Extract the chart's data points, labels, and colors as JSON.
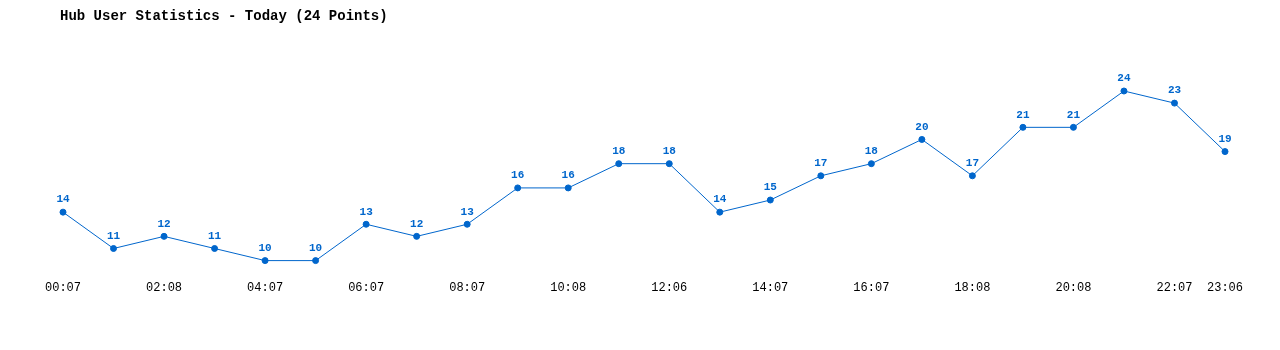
{
  "chart_data": {
    "type": "line",
    "title": "Hub User Statistics - Today (24 Points)",
    "categories": [
      "00:07",
      null,
      "02:08",
      null,
      "04:07",
      null,
      "06:07",
      null,
      "08:07",
      null,
      "10:08",
      null,
      "12:06",
      null,
      "14:07",
      null,
      "16:07",
      null,
      "18:08",
      null,
      "20:08",
      null,
      "22:07",
      "23:06"
    ],
    "values": [
      14,
      11,
      12,
      11,
      10,
      10,
      13,
      12,
      13,
      16,
      16,
      18,
      18,
      14,
      15,
      17,
      18,
      20,
      17,
      21,
      21,
      24,
      23,
      19
    ],
    "color": "#0066cc",
    "data_labels": true,
    "marker": "circle",
    "line_style": "solid",
    "grid": false,
    "legend": false,
    "relative": false
  }
}
